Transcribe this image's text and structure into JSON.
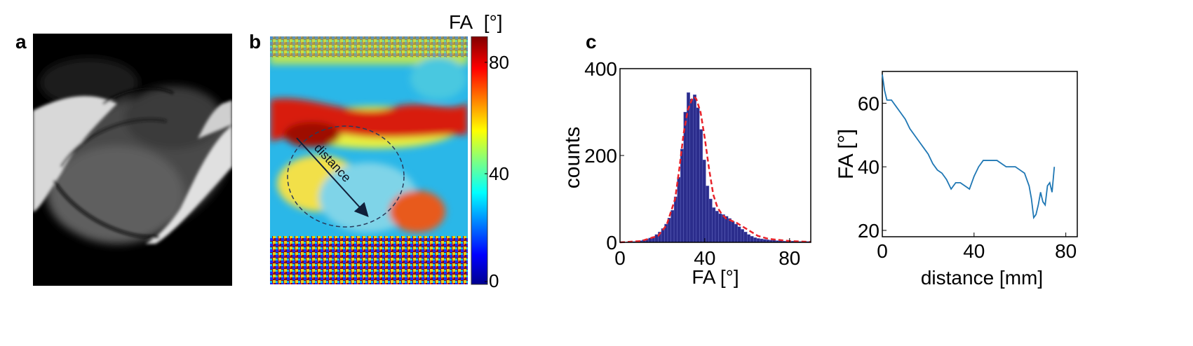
{
  "panels": {
    "a": {
      "label": "a"
    },
    "b": {
      "label": "b",
      "arrow_label": "distance",
      "colorbar": {
        "title": "FA",
        "unit": "[°]",
        "ticks": [
          "80",
          "40",
          "0"
        ],
        "range": [
          0,
          90
        ]
      }
    },
    "c": {
      "label": "c"
    }
  },
  "chart_data": [
    {
      "type": "bar",
      "xlabel": "FA  [°]",
      "ylabel": "counts",
      "xlim": [
        0,
        90
      ],
      "ylim": [
        0,
        400
      ],
      "xticks": [
        "0",
        "40",
        "80"
      ],
      "yticks": [
        "400",
        "200",
        "0"
      ],
      "bin_width": 1.5,
      "bin_centers_start": 0.75,
      "values": [
        0,
        0,
        1,
        1,
        2,
        3,
        4,
        6,
        8,
        10,
        13,
        18,
        24,
        32,
        42,
        56,
        74,
        105,
        150,
        215,
        300,
        345,
        330,
        340,
        310,
        260,
        190,
        130,
        100,
        80,
        72,
        66,
        64,
        60,
        55,
        48,
        42,
        36,
        30,
        24,
        18,
        14,
        11,
        9,
        8,
        7,
        6,
        5,
        5,
        4,
        4,
        3,
        3,
        3,
        3,
        2,
        2,
        2,
        2,
        2
      ],
      "bar_color": "#2b2d8c",
      "fit_line": {
        "style": "dashed",
        "color": "#e8232b",
        "x": [
          0,
          10,
          18,
          22,
          26,
          28,
          30,
          32,
          34,
          35,
          36,
          38,
          40,
          42,
          44,
          46,
          48,
          50,
          55,
          60,
          65,
          70,
          80,
          90
        ],
        "y": [
          0,
          3,
          15,
          40,
          100,
          170,
          250,
          305,
          330,
          335,
          330,
          300,
          240,
          170,
          110,
          80,
          65,
          55,
          45,
          30,
          15,
          8,
          3,
          1
        ]
      }
    },
    {
      "type": "line",
      "xlabel": "distance [mm]",
      "ylabel": "FA [°]",
      "xlim": [
        0,
        85
      ],
      "ylim": [
        18,
        70
      ],
      "xticks": [
        "0",
        "40",
        "80"
      ],
      "yticks": [
        "60",
        "40",
        "20"
      ],
      "line_color": "#1f77b4",
      "x": [
        0,
        1,
        2,
        4,
        6,
        8,
        10,
        12,
        14,
        16,
        18,
        20,
        22,
        24,
        26,
        28,
        30,
        32,
        34,
        36,
        38,
        40,
        42,
        44,
        46,
        48,
        50,
        52,
        54,
        56,
        58,
        60,
        62,
        64,
        65,
        66,
        67,
        68,
        69,
        70,
        71,
        72,
        73,
        74,
        75
      ],
      "y": [
        69,
        64,
        61,
        61,
        59,
        57,
        55,
        52,
        50,
        48,
        46,
        44,
        41,
        39,
        38,
        36,
        33,
        35,
        35,
        34,
        33,
        37,
        40,
        42,
        42,
        42,
        42,
        41,
        40,
        40,
        40,
        39,
        38,
        34,
        30,
        24,
        25,
        28,
        32,
        29,
        28,
        34,
        35,
        32,
        40
      ]
    }
  ]
}
